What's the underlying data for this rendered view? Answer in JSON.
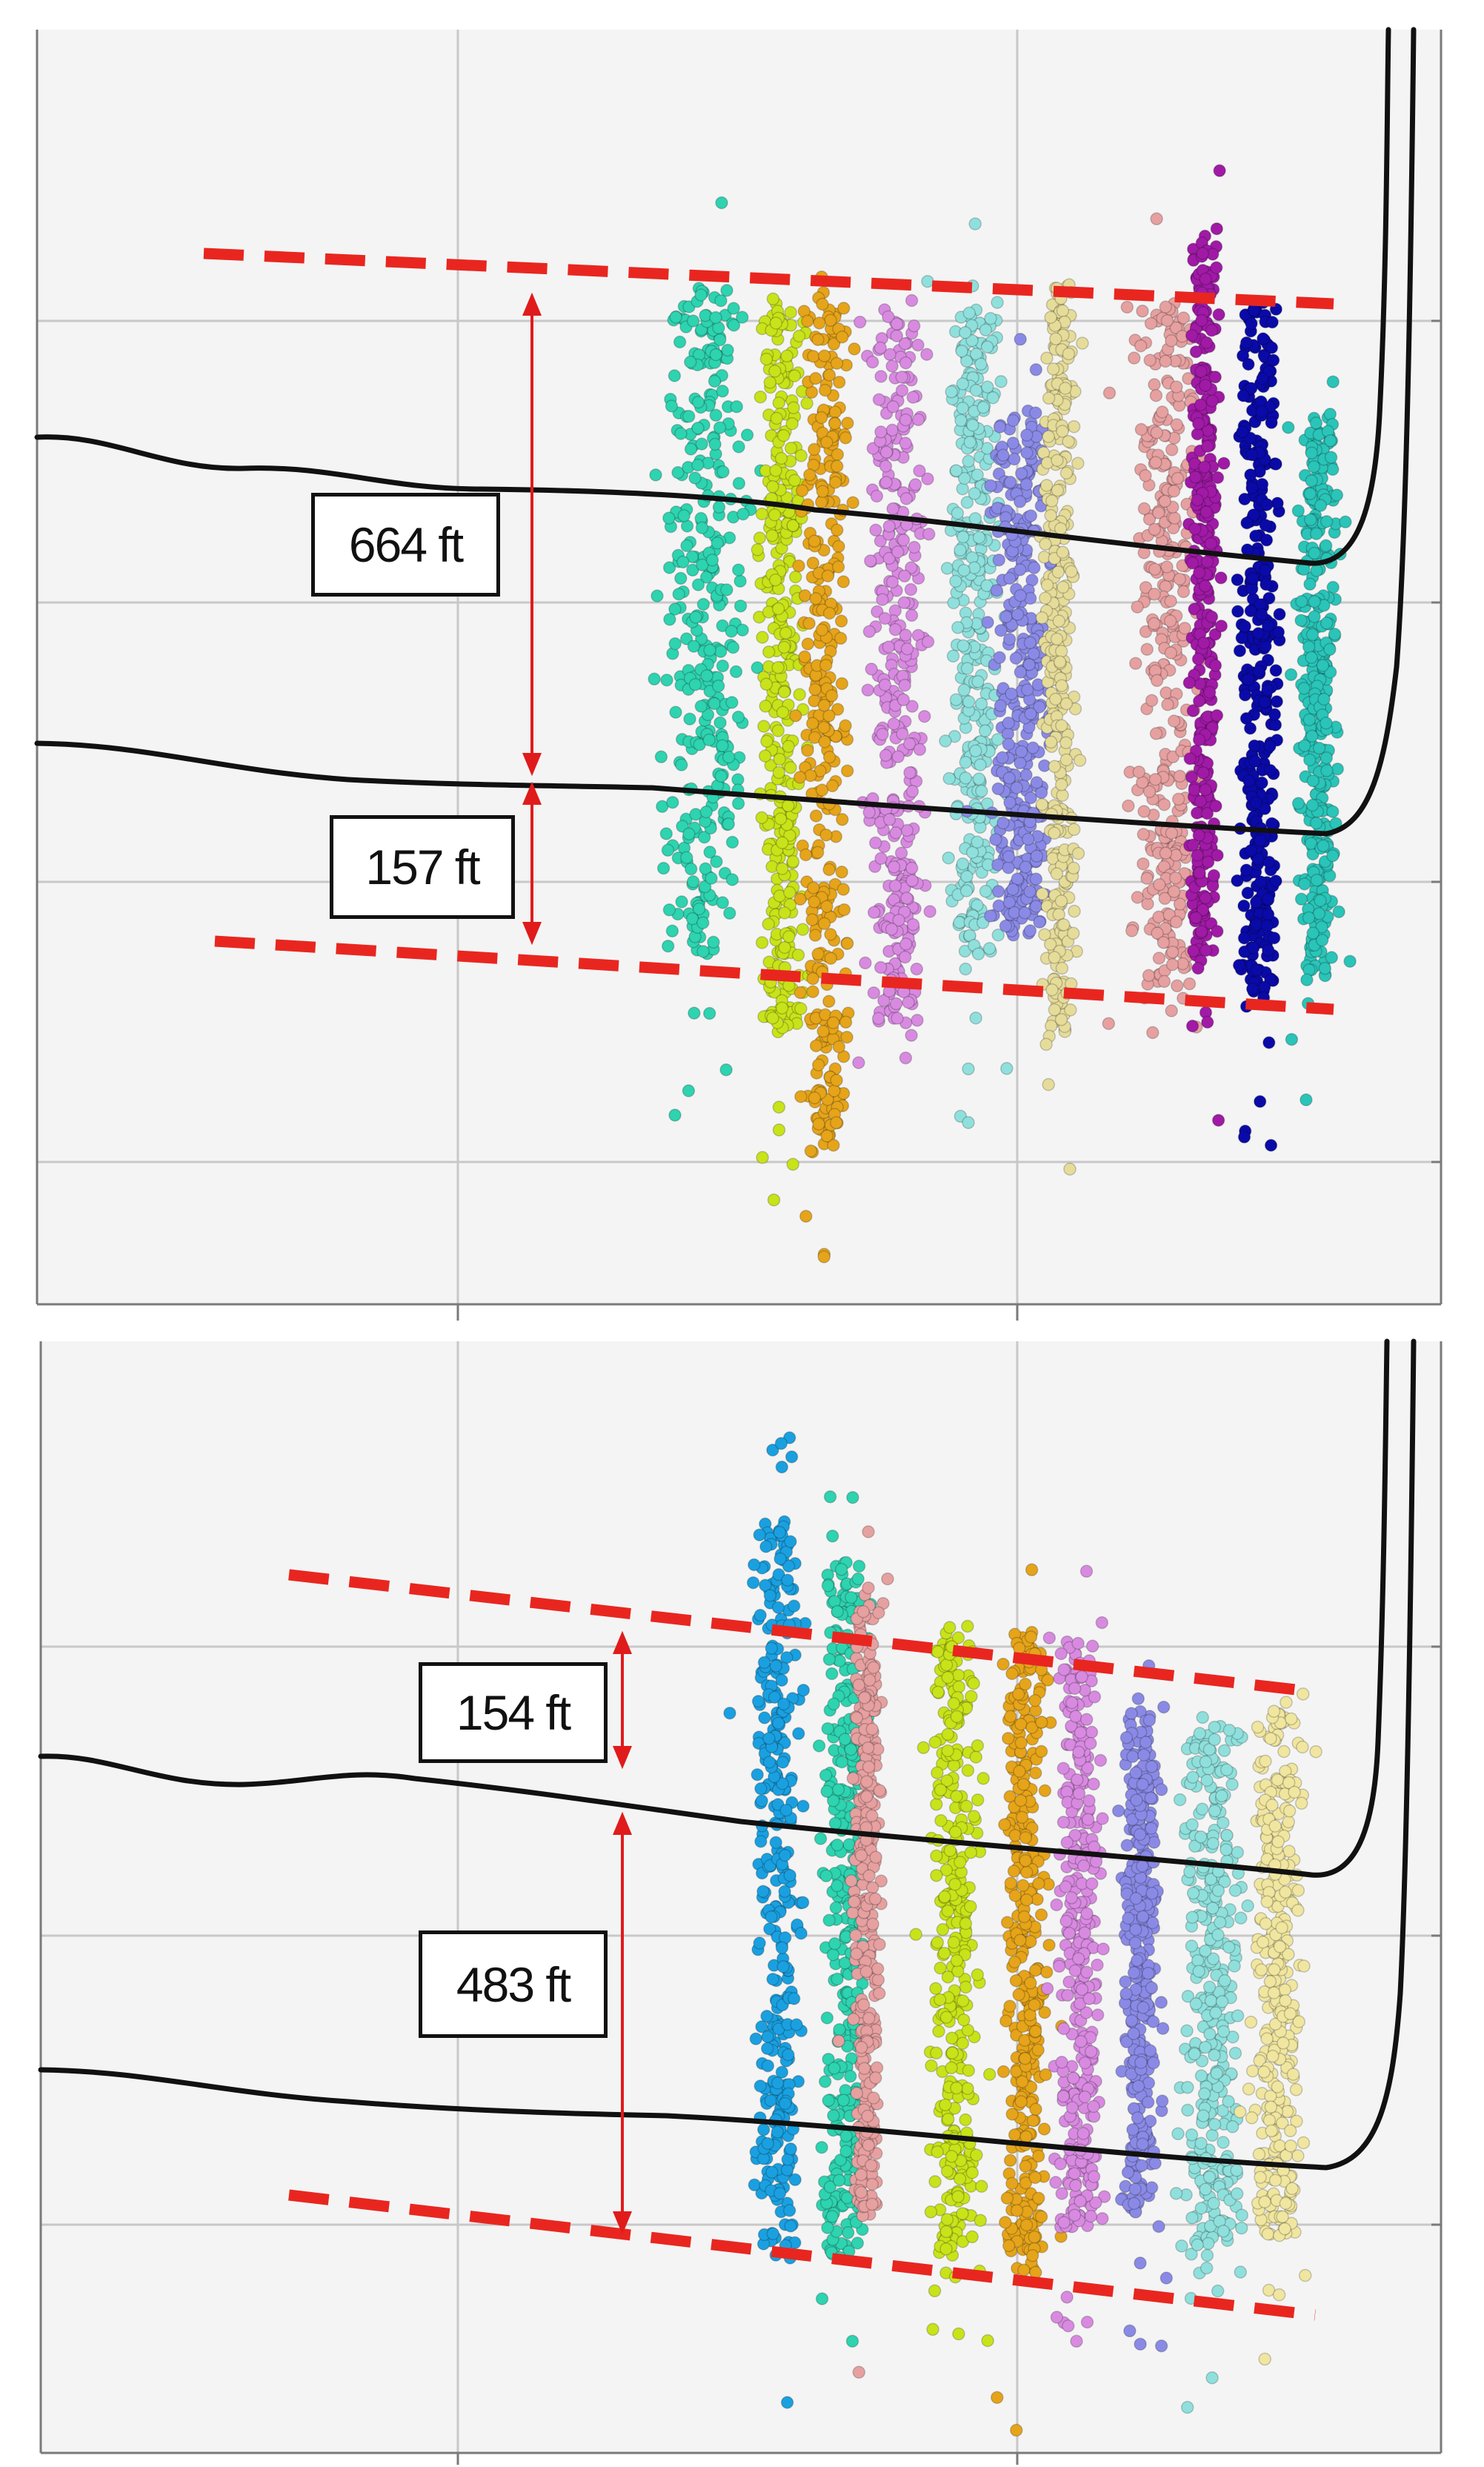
{
  "colors": {
    "plot_bg": "#f4f4f4",
    "grid": "#c8c8c8",
    "frame": "#7a7a7a",
    "well_path": "#111111",
    "boundary_dash": "#e8261f",
    "measure_arrow": "#e01b1b"
  },
  "panels": [
    {
      "id": "top",
      "measurements": [
        {
          "label": "664 ft"
        },
        {
          "label": "157 ft"
        }
      ],
      "event_cluster_colors": [
        "#2ed3b0",
        "#c8e31a",
        "#e5a41a",
        "#d88ae0",
        "#8fe0dc",
        "#8a8ae6",
        "#e6dc9a",
        "#e6a0a0",
        "#a01aa6",
        "#0a0aa8",
        "#2ac4b8"
      ]
    },
    {
      "id": "bottom",
      "measurements": [
        {
          "label": "154 ft"
        },
        {
          "label": "483 ft"
        }
      ],
      "event_cluster_colors": [
        "#1aa0e0",
        "#2ed3b0",
        "#e6a0a0",
        "#c8e31a",
        "#e5a41a",
        "#d88ae0",
        "#8a8ae6",
        "#8fe0dc",
        "#f0e6a0"
      ]
    }
  ]
}
